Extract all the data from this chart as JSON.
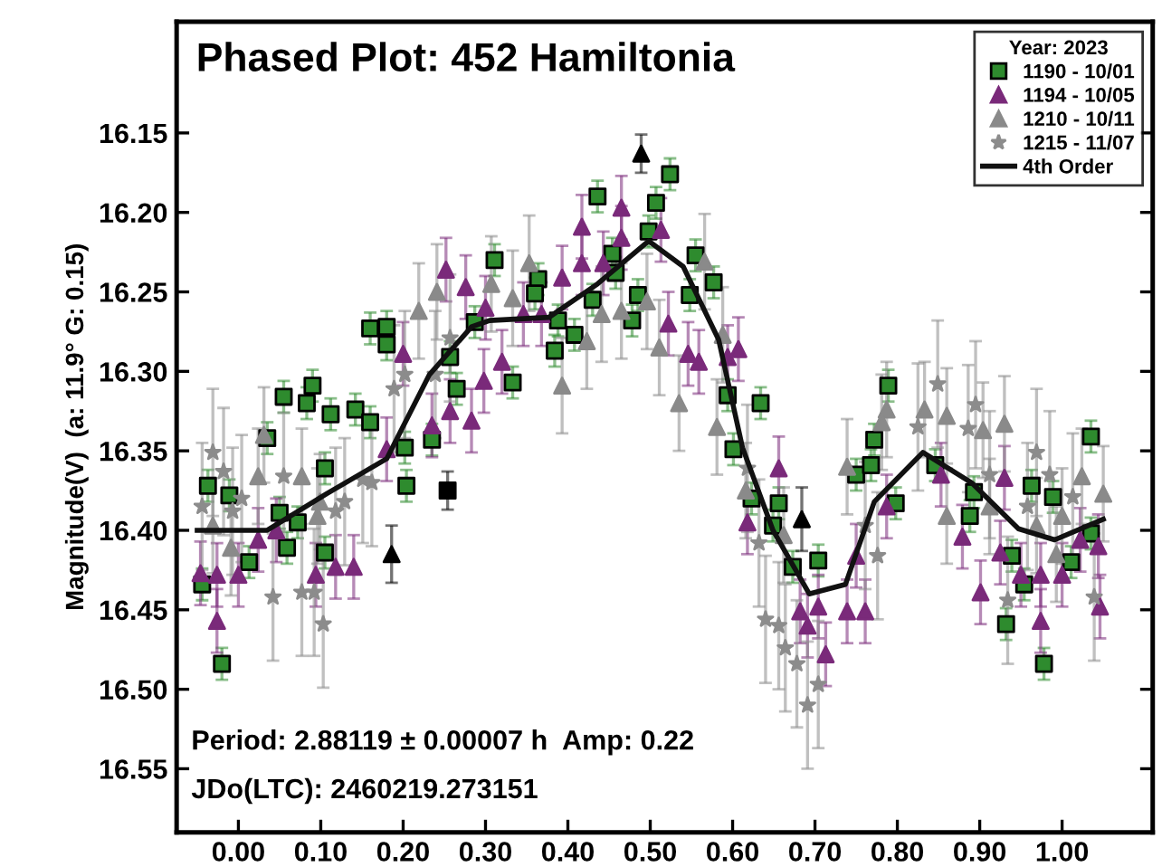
{
  "chart_data": {
    "type": "scatter",
    "title": "Phased Plot: 452 Hamiltonia",
    "ylabel": "Magnitude(V)  (a: 11.9° G: 0.15)",
    "legend_title": "Year: 2023",
    "legend": "top right",
    "grid": false,
    "annotations": [
      "Period: 2.88119 ± 0.00007 h  Amp: 0.22",
      "JDo(LTC): 2460219.273151"
    ],
    "xlim": [
      -0.075,
      1.11
    ],
    "ylim": [
      16.59,
      16.08
    ],
    "xticks": [
      {
        "value": 0,
        "label": "0.00"
      },
      {
        "value": 0.1,
        "label": "0.10"
      },
      {
        "value": 0.2,
        "label": "0.20"
      },
      {
        "value": 0.3,
        "label": "0.30"
      },
      {
        "value": 0.4,
        "label": "0.40"
      },
      {
        "value": 0.5,
        "label": "0.50"
      },
      {
        "value": 0.6,
        "label": "0.60"
      },
      {
        "value": 0.7,
        "label": "0.70"
      },
      {
        "value": 0.8,
        "label": "0.80"
      },
      {
        "value": 0.9,
        "label": "0.90"
      },
      {
        "value": 1.0,
        "label": "1.00"
      }
    ],
    "yticks": [
      {
        "value": 16.15,
        "label": "16.15"
      },
      {
        "value": 16.2,
        "label": "16.20"
      },
      {
        "value": 16.25,
        "label": "16.25"
      },
      {
        "value": 16.3,
        "label": "16.30"
      },
      {
        "value": 16.35,
        "label": "16.35"
      },
      {
        "value": 16.4,
        "label": "16.40"
      },
      {
        "value": 16.45,
        "label": "16.45"
      },
      {
        "value": 16.5,
        "label": "16.50"
      },
      {
        "value": 16.55,
        "label": "16.55"
      }
    ],
    "series": [
      {
        "name": "1190 - 10/01",
        "color": "#2e8b2e",
        "marker": "square",
        "x": [
          -0.044,
          -0.02,
          -0.037,
          -0.011,
          0.013,
          0.035,
          0.055,
          0.05,
          0.059,
          0.072,
          0.083,
          0.09,
          0.112,
          0.105,
          0.105,
          0.142,
          0.16,
          0.18,
          0.18,
          0.16,
          0.202,
          0.204,
          0.235,
          0.265,
          0.257,
          0.311,
          0.287,
          0.364,
          0.36,
          0.333,
          0.388,
          0.408,
          0.384,
          0.436,
          0.43,
          0.454,
          0.458,
          0.485,
          0.478,
          0.498,
          0.507,
          0.524,
          0.548,
          0.555,
          0.577,
          0.594,
          0.634,
          0.601,
          0.623,
          0.656,
          0.649,
          0.673,
          0.704,
          0.789,
          0.772,
          0.75,
          0.768,
          0.798,
          0.846,
          0.893,
          0.888,
          0.963,
          0.989,
          1.035,
          0.939,
          0.954,
          0.932,
          0.978,
          1.011,
          1.035
        ],
        "values": [
          16.434,
          16.484,
          16.372,
          16.378,
          16.42,
          16.342,
          16.316,
          16.389,
          16.411,
          16.395,
          16.32,
          16.309,
          16.327,
          16.361,
          16.414,
          16.324,
          16.273,
          16.272,
          16.283,
          16.332,
          16.348,
          16.372,
          16.343,
          16.311,
          16.291,
          16.23,
          16.269,
          16.242,
          16.251,
          16.307,
          16.268,
          16.277,
          16.287,
          16.19,
          16.255,
          16.226,
          16.238,
          16.252,
          16.268,
          16.212,
          16.194,
          16.176,
          16.252,
          16.227,
          16.244,
          16.315,
          16.32,
          16.349,
          16.38,
          16.383,
          16.397,
          16.423,
          16.419,
          16.309,
          16.343,
          16.365,
          16.359,
          16.383,
          16.359,
          16.376,
          16.391,
          16.372,
          16.379,
          16.341,
          16.416,
          16.434,
          16.459,
          16.484,
          16.42,
          16.402
        ],
        "errors": [
          0.01,
          0.01,
          0.01,
          0.01,
          0.01,
          0.01,
          0.01,
          0.01,
          0.01,
          0.01,
          0.01,
          0.01,
          0.01,
          0.01,
          0.01,
          0.01,
          0.01,
          0.01,
          0.01,
          0.01,
          0.01,
          0.01,
          0.01,
          0.01,
          0.01,
          0.01,
          0.01,
          0.01,
          0.01,
          0.01,
          0.01,
          0.01,
          0.01,
          0.01,
          0.01,
          0.01,
          0.01,
          0.01,
          0.01,
          0.01,
          0.01,
          0.01,
          0.01,
          0.01,
          0.01,
          0.01,
          0.01,
          0.01,
          0.01,
          0.01,
          0.01,
          0.01,
          0.01,
          0.01,
          0.01,
          0.01,
          0.01,
          0.01,
          0.01,
          0.01,
          0.01,
          0.01,
          0.01,
          0.01,
          0.01,
          0.01,
          0.01,
          0.01,
          0.01,
          0.01
        ]
      },
      {
        "name": "1194 - 10/05",
        "color": "#7a2a7a",
        "marker": "triangle",
        "x": [
          -0.046,
          -0.026,
          -0.026,
          0,
          0.024,
          0.046,
          0.094,
          0.118,
          0.14,
          0.18,
          0.2,
          0.235,
          0.257,
          0.283,
          0.252,
          0.276,
          0.3,
          0.298,
          0.32,
          0.346,
          0.368,
          0.393,
          0.417,
          0.417,
          0.465,
          0.465,
          0.443,
          0.513,
          0.522,
          0.546,
          0.559,
          0.583,
          0.594,
          0.607,
          0.656,
          0.618,
          0.682,
          0.691,
          0.713,
          0.704,
          0.739,
          0.761,
          0.75,
          0.787,
          0.853,
          0.879,
          0.901,
          0.925,
          0.93,
          0.95,
          0.974,
          0.974,
          1.0,
          1.022,
          1.046,
          1.044
        ],
        "values": [
          16.427,
          16.428,
          16.457,
          16.428,
          16.406,
          16.4,
          16.428,
          16.423,
          16.423,
          16.349,
          16.289,
          16.334,
          16.325,
          16.331,
          16.236,
          16.247,
          16.26,
          16.306,
          16.294,
          16.264,
          16.264,
          16.241,
          16.209,
          16.232,
          16.197,
          16.216,
          16.232,
          16.211,
          16.27,
          16.289,
          16.294,
          null,
          16.291,
          16.286,
          16.361,
          16.395,
          16.451,
          16.46,
          16.478,
          16.448,
          16.451,
          16.451,
          16.416,
          16.385,
          16.365,
          16.404,
          16.439,
          16.414,
          16.367,
          16.428,
          16.428,
          16.457,
          16.428,
          16.406,
          16.448,
          16.41
        ],
        "errors": [
          0.02,
          0.02,
          0.02,
          0.02,
          0.02,
          0.02,
          0.02,
          0.02,
          0.02,
          0.02,
          0.02,
          0.02,
          0.02,
          0.02,
          0.02,
          0.02,
          0.02,
          0.02,
          0.02,
          0.02,
          0.02,
          0.02,
          0.02,
          0.02,
          0.02,
          0.02,
          0.02,
          0.02,
          0.02,
          0.02,
          0.02,
          null,
          0.02,
          0.02,
          0.02,
          0.02,
          0.02,
          0.02,
          0.02,
          0.02,
          0.02,
          0.02,
          0.02,
          0.02,
          0.02,
          0.02,
          0.02,
          0.02,
          0.02,
          0.02,
          0.02,
          0.02,
          0.02,
          0.02,
          0.02,
          0.02
        ]
      },
      {
        "name": "1210 - 10/11",
        "color": "#8a8a8a",
        "marker": "triangle",
        "x": [
          -0.031,
          -0.009,
          0.024,
          0.031,
          0.096,
          0.077,
          0.099,
          0.219,
          0.241,
          0.307,
          0.353,
          0.333,
          0.423,
          0.441,
          0.465,
          0.393,
          0.496,
          0.511,
          0.535,
          0.566,
          0.581,
          0.616,
          0.588,
          0.662,
          0.737,
          0.787,
          0.781,
          0.739,
          0.833,
          0.86,
          0.904,
          0.93,
          0.86,
          0.969,
          0.993,
          1.0,
          1.024,
          1.05,
          0.912
        ],
        "values": [
          16.397,
          16.411,
          16.366,
          16.34,
          16.391,
          16.366,
          16.382,
          16.262,
          16.25,
          16.245,
          16.232,
          16.254,
          16.281,
          16.264,
          16.262,
          16.309,
          16.256,
          16.285,
          16.32,
          16.231,
          16.335,
          16.375,
          16.277,
          16.403,
          null,
          16.324,
          16.332,
          16.36,
          16.324,
          16.328,
          16.337,
          16.333,
          16.391,
          16.397,
          16.415,
          16.391,
          16.366,
          16.377,
          16.385
        ],
        "errors": [
          0.03,
          0.03,
          0.03,
          0.03,
          0.03,
          0.03,
          0.03,
          0.03,
          0.03,
          0.03,
          0.03,
          0.03,
          0.03,
          0.03,
          0.03,
          0.03,
          0.03,
          0.03,
          0.03,
          0.03,
          0.03,
          0.03,
          0.03,
          0.03,
          null,
          0.03,
          0.03,
          0.03,
          0.03,
          0.03,
          0.03,
          0.03,
          0.03,
          0.03,
          0.03,
          0.03,
          0.03,
          0.03,
          0.03
        ]
      },
      {
        "name": "1215 - 11/07",
        "color": "#8c8c8c",
        "marker": "star",
        "x": [
          -0.031,
          -0.044,
          -0.018,
          0.004,
          -0.007,
          0.042,
          0.055,
          0.077,
          0.092,
          0.103,
          0.118,
          0.129,
          0.151,
          0.162,
          0.189,
          0.202,
          0.239,
          0.257,
          0.64,
          0.656,
          0.664,
          0.678,
          0.691,
          0.704,
          0.618,
          0.632,
          0.776,
          0.761,
          0.825,
          0.849,
          0.886,
          0.895,
          0.912,
          0.958,
          0.969,
          0.985,
          0.934,
          1.013,
          1.039
        ],
        "values": [
          16.351,
          16.385,
          16.363,
          16.38,
          16.388,
          16.442,
          16.366,
          16.439,
          16.439,
          16.459,
          16.388,
          16.382,
          16.368,
          16.37,
          16.311,
          16.302,
          16.302,
          16.279,
          16.456,
          16.46,
          16.474,
          16.484,
          16.51,
          16.497,
          16.361,
          16.408,
          16.416,
          16.397,
          16.335,
          16.308,
          16.336,
          16.321,
          16.365,
          16.385,
          16.351,
          16.365,
          16.444,
          16.379,
          16.442
        ],
        "errors": [
          0.04,
          0.04,
          0.04,
          0.04,
          0.04,
          0.04,
          0.04,
          0.04,
          0.04,
          0.04,
          0.04,
          0.04,
          0.04,
          0.04,
          0.04,
          0.04,
          0.04,
          0.04,
          0.04,
          0.04,
          0.04,
          0.04,
          0.04,
          0.04,
          0.04,
          0.04,
          0.04,
          0.04,
          0.04,
          0.04,
          0.04,
          0.04,
          0.04,
          0.04,
          0.04,
          0.04,
          0.04,
          0.04,
          0.04
        ]
      },
      {
        "color": "#000000",
        "marker": "square",
        "x": [
          0.254
        ],
        "values": [
          16.375
        ],
        "errors": [
          0.012
        ]
      },
      {
        "color": "#000000",
        "marker": "triangle",
        "x": [
          0.186,
          0.489,
          0.684
        ],
        "values": [
          16.415,
          16.163,
          16.393
        ],
        "errors": [
          0.018,
          0.012,
          0.02
        ]
      },
      {
        "name": "4th Order",
        "type": "line",
        "color": "#111111",
        "marker": "none",
        "x": [
          -0.05,
          0.035,
          0.107,
          0.18,
          0.232,
          0.283,
          0.305,
          0.377,
          0.436,
          0.498,
          0.54,
          0.583,
          0.612,
          0.649,
          0.693,
          0.737,
          0.772,
          0.831,
          0.89,
          0.947,
          0.991,
          1.05
        ],
        "values": [
          16.4,
          16.4,
          16.377,
          16.355,
          16.302,
          16.272,
          16.268,
          16.266,
          16.245,
          16.218,
          16.234,
          16.28,
          16.348,
          16.4,
          16.44,
          16.434,
          16.382,
          16.351,
          16.37,
          16.399,
          16.406,
          16.393
        ]
      }
    ]
  }
}
